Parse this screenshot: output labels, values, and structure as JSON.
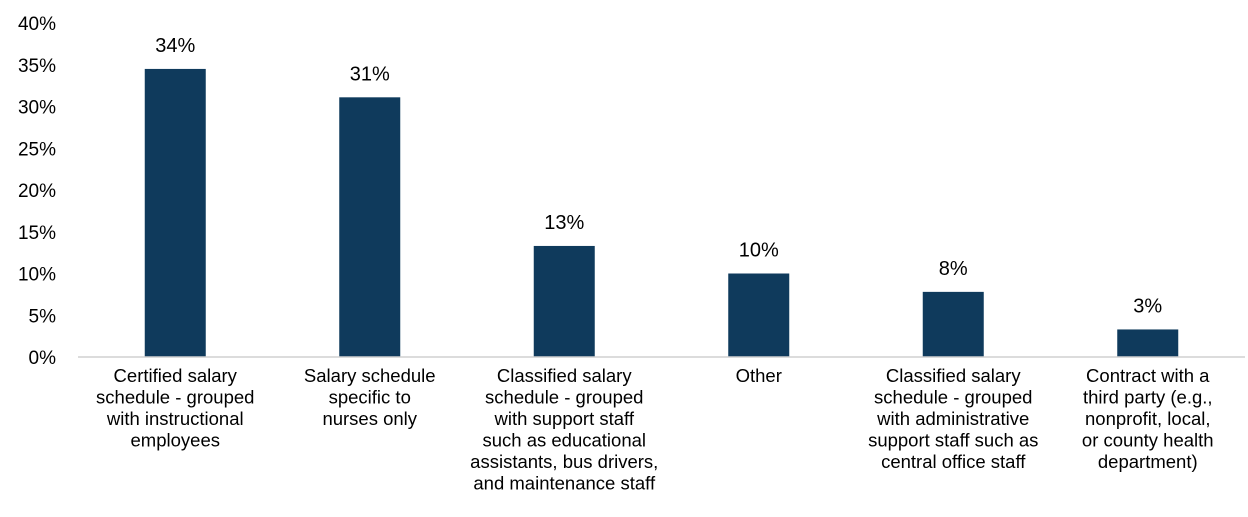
{
  "chart_data": {
    "type": "bar",
    "categories": [
      [
        "Certified salary",
        "schedule - grouped",
        "with instructional",
        "employees"
      ],
      [
        "Salary schedule",
        "specific to",
        "nurses only"
      ],
      [
        "Classified salary",
        "schedule - grouped",
        "with support staff",
        "such as educational",
        "assistants, bus drivers,",
        "and maintenance staff"
      ],
      [
        "Other"
      ],
      [
        "Classified salary",
        "schedule - grouped",
        "with administrative",
        "support staff such as",
        "central office staff"
      ],
      [
        "Contract with a",
        "third party (e.g.,",
        "nonprofit, local,",
        "or county health",
        "department)"
      ]
    ],
    "values": [
      34.5,
      31.1,
      13.3,
      10.0,
      7.8,
      3.3
    ],
    "data_labels": [
      "34%",
      "31%",
      "13%",
      "10%",
      "8%",
      "3%"
    ],
    "yticks": [
      "0%",
      "5%",
      "10%",
      "15%",
      "20%",
      "25%",
      "30%",
      "35%",
      "40%"
    ],
    "ytick_values": [
      0,
      5,
      10,
      15,
      20,
      25,
      30,
      35,
      40
    ],
    "ylim": [
      0,
      40
    ],
    "grid": false,
    "legend": "none",
    "bar_color": "#0f3a5c",
    "axis_color": "#d0d0d0"
  }
}
